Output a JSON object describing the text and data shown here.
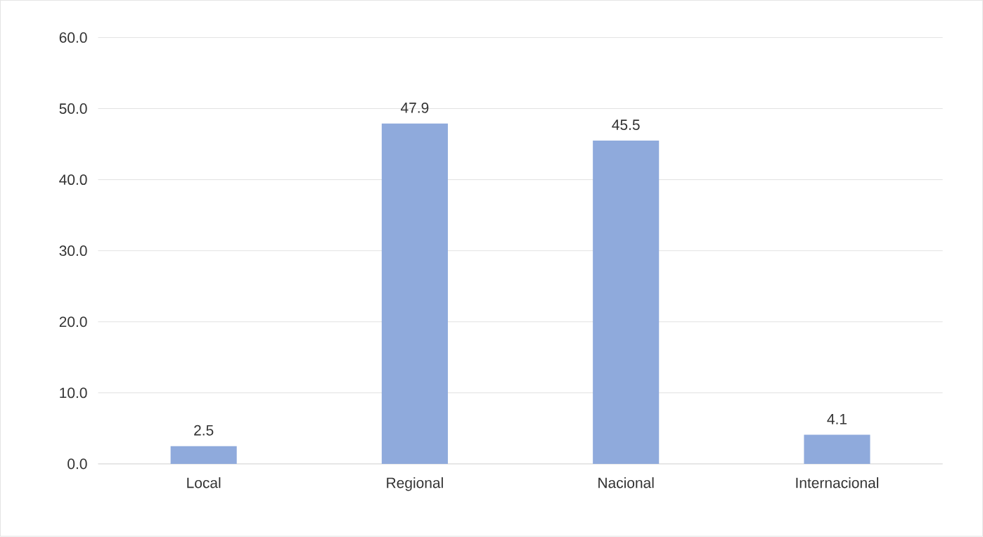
{
  "chart_data": {
    "type": "bar",
    "categories": [
      "Local",
      "Regional",
      "Nacional",
      "Internacional"
    ],
    "values": [
      2.5,
      47.9,
      45.5,
      4.1
    ],
    "color": "#8faadc",
    "ylim": [
      0,
      60
    ],
    "yticks": [
      {
        "value": 0,
        "label": "0.0"
      },
      {
        "value": 10,
        "label": "10.0"
      },
      {
        "value": 20,
        "label": "20.0"
      },
      {
        "value": 30,
        "label": "30.0"
      },
      {
        "value": 40,
        "label": "40.0"
      },
      {
        "value": 50,
        "label": "50.0"
      },
      {
        "value": 60,
        "label": "60.0"
      }
    ],
    "grid": "y",
    "data_labels": true
  }
}
